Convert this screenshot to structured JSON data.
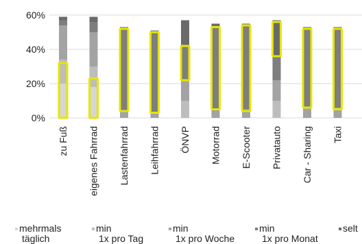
{
  "chart_data": {
    "type": "bar",
    "stacked": true,
    "y_tick_labels": [
      "0%",
      "20%",
      "40%",
      "60%"
    ],
    "ylim": [
      0,
      60
    ],
    "grid": true,
    "categories": [
      "zu Fuß",
      "eigenes Fahrrad",
      "Lastenfahrrad",
      "Leihfahrrad",
      "ÖNVP",
      "Motorrad",
      "E-Scooter",
      "Privatauto",
      "Car - Sharing",
      "Taxi"
    ],
    "series": [
      {
        "name": "mehrmals täglich",
        "color": "#d6d6d6",
        "values": [
          20,
          18,
          0,
          0,
          0,
          0,
          0,
          0,
          0,
          0
        ]
      },
      {
        "name": "min 1x pro Tag",
        "color": "#bdbdbd",
        "values": [
          14,
          12,
          0,
          0,
          10,
          0,
          0,
          10,
          0,
          0
        ]
      },
      {
        "name": "min 1x pro Woche",
        "color": "#a3a3a3",
        "values": [
          20,
          20,
          4,
          3,
          12,
          5,
          5,
          12,
          6,
          6
        ]
      },
      {
        "name": "min 1x pro Monat",
        "color": "#7e7e7e",
        "values": [
          3,
          6,
          48,
          47,
          20,
          48,
          49,
          14,
          46,
          46
        ]
      },
      {
        "name": "seltener",
        "color": "#6a6a6a",
        "values": [
          2,
          3,
          1,
          1,
          15,
          2,
          1,
          21,
          1,
          1
        ]
      }
    ],
    "highlight": {
      "color": "#e6e600",
      "ranges": [
        [
          0,
          32
        ],
        [
          0,
          23
        ],
        [
          4,
          52
        ],
        [
          3,
          50
        ],
        [
          22,
          42
        ],
        [
          5,
          53
        ],
        [
          4,
          54
        ],
        [
          36,
          56
        ],
        [
          6,
          52
        ],
        [
          5,
          52
        ]
      ]
    },
    "legend_position": "bottom",
    "legend": [
      {
        "line1": "mehrmals",
        "line2": "täglich",
        "color": "#d6d6d6"
      },
      {
        "line1": "min",
        "line2": "1x pro Tag",
        "color": "#bdbdbd"
      },
      {
        "line1": "min",
        "line2": "1x pro Woche",
        "color": "#a3a3a3"
      },
      {
        "line1": "min",
        "line2": "1x pro Monat",
        "color": "#7e7e7e"
      },
      {
        "line1": "selt",
        "line2": "",
        "color": "#6a6a6a"
      }
    ]
  }
}
